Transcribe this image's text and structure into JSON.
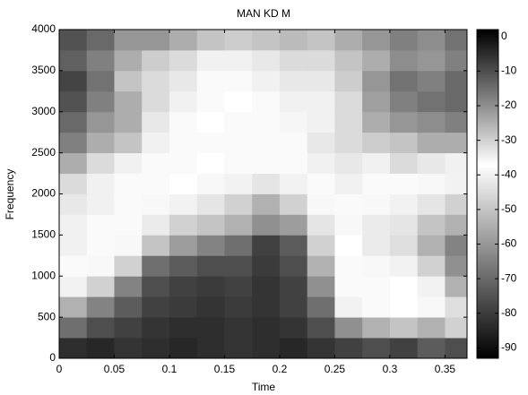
{
  "chart_data": {
    "type": "heatmap",
    "title": "MAN KD M",
    "x_label": "Time",
    "y_label": "Frequency",
    "xbins": [
      0,
      0.025,
      0.05,
      0.075,
      0.1,
      0.125,
      0.15,
      0.175,
      0.2,
      0.225,
      0.25,
      0.275,
      0.3,
      0.325,
      0.35,
      0.37
    ],
    "ybins": [
      0,
      250,
      500,
      750,
      1000,
      1250,
      1500,
      1750,
      2000,
      2250,
      2500,
      2750,
      3000,
      3250,
      3500,
      3750,
      4000
    ],
    "values": [
      [
        -5,
        -4,
        -6,
        -5,
        -4,
        -5,
        -6,
        -5,
        -4,
        -6,
        -8,
        -10,
        -8,
        -12,
        -10
      ],
      [
        -15,
        -10,
        -8,
        -6,
        -5,
        -5,
        -6,
        -5,
        -6,
        -10,
        -20,
        -25,
        -28,
        -25,
        -30
      ],
      [
        -25,
        -18,
        -12,
        -8,
        -7,
        -6,
        -7,
        -6,
        -8,
        -15,
        -35,
        -38,
        -37,
        -36,
        -32
      ],
      [
        -35,
        -30,
        -18,
        -10,
        -8,
        -7,
        -8,
        -6,
        -8,
        -20,
        -38,
        -38,
        -37,
        -35,
        -25
      ],
      [
        -38,
        -36,
        -30,
        -15,
        -12,
        -10,
        -10,
        -7,
        -10,
        -25,
        -38,
        -36,
        -35,
        -30,
        -20
      ],
      [
        -40,
        -38,
        -36,
        -28,
        -22,
        -18,
        -15,
        -8,
        -12,
        -30,
        -37,
        -34,
        -32,
        -25,
        -18
      ],
      [
        -40,
        -38,
        -38,
        -34,
        -30,
        -28,
        -25,
        -20,
        -22,
        -33,
        -36,
        -34,
        -33,
        -28,
        -25
      ],
      [
        -42,
        -40,
        -38,
        -36,
        -35,
        -33,
        -30,
        -25,
        -30,
        -36,
        -38,
        -36,
        -35,
        -33,
        -30
      ],
      [
        -45,
        -40,
        -38,
        -38,
        -37,
        -36,
        -35,
        -33,
        -35,
        -38,
        -40,
        -38,
        -38,
        -36,
        -35
      ],
      [
        -55,
        -45,
        -40,
        -38,
        -38,
        -37,
        -38,
        -38,
        -38,
        -40,
        -42,
        -40,
        -45,
        -42,
        -40
      ],
      [
        -65,
        -55,
        -50,
        -40,
        -38,
        -38,
        -38,
        -38,
        -38,
        -42,
        -45,
        -48,
        -50,
        -55,
        -55
      ],
      [
        -70,
        -60,
        -55,
        -42,
        -38,
        -37,
        -38,
        -38,
        -39,
        -40,
        -45,
        -55,
        -60,
        -62,
        -65
      ],
      [
        -75,
        -65,
        -55,
        -45,
        -40,
        -38,
        -37,
        -38,
        -40,
        -40,
        -45,
        -58,
        -65,
        -68,
        -70
      ],
      [
        -78,
        -68,
        -50,
        -45,
        -42,
        -38,
        -38,
        -40,
        -42,
        -42,
        -48,
        -60,
        -68,
        -65,
        -70
      ],
      [
        -72,
        -65,
        -55,
        -48,
        -45,
        -40,
        -40,
        -42,
        -45,
        -45,
        -50,
        -55,
        -62,
        -60,
        -65
      ],
      [
        -75,
        -70,
        -60,
        -60,
        -55,
        -50,
        -48,
        -50,
        -52,
        -50,
        -55,
        -60,
        -65,
        -62,
        -68
      ]
    ],
    "xlim": [
      0,
      0.37
    ],
    "xticks": [
      0,
      0.05,
      0.1,
      0.15,
      0.2,
      0.25,
      0.3,
      0.35
    ],
    "ylim": [
      0,
      4000
    ],
    "yticks": [
      0,
      500,
      1000,
      1500,
      2000,
      2500,
      3000,
      3500,
      4000
    ],
    "clim": [
      -93,
      2
    ],
    "cticks": [
      0,
      -10,
      -20,
      -30,
      -40,
      -50,
      -60,
      -70,
      -80,
      -90
    ],
    "colormap": [
      {
        "value": -93,
        "color": "#000000"
      },
      {
        "value": -37,
        "color": "#ffffff"
      },
      {
        "value": 2,
        "color": "#000000"
      }
    ]
  }
}
